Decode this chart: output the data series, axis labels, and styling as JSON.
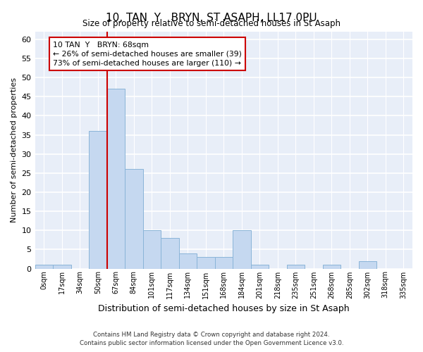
{
  "title": "10, TAN  Y   BRYN, ST ASAPH, LL17 0PU",
  "subtitle": "Size of property relative to semi-detached houses in St Asaph",
  "xlabel": "Distribution of semi-detached houses by size in St Asaph",
  "ylabel": "Number of semi-detached properties",
  "bar_labels": [
    "0sqm",
    "17sqm",
    "34sqm",
    "50sqm",
    "67sqm",
    "84sqm",
    "101sqm",
    "117sqm",
    "134sqm",
    "151sqm",
    "168sqm",
    "184sqm",
    "201sqm",
    "218sqm",
    "235sqm",
    "251sqm",
    "268sqm",
    "285sqm",
    "302sqm",
    "318sqm",
    "335sqm"
  ],
  "bar_values": [
    1,
    1,
    0,
    36,
    47,
    26,
    10,
    8,
    4,
    3,
    3,
    10,
    1,
    0,
    1,
    0,
    1,
    0,
    2,
    0,
    0
  ],
  "bar_color": "#c5d8f0",
  "bar_edgecolor": "#8ab4d8",
  "property_bin_index": 4,
  "annotation_title": "10 TAN  Y   BRYN: 68sqm",
  "annotation_line1": "← 26% of semi-detached houses are smaller (39)",
  "annotation_line2": "73% of semi-detached houses are larger (110) →",
  "vline_color": "#cc0000",
  "annotation_box_edgecolor": "#cc0000",
  "ylim_max": 62,
  "yticks": [
    0,
    5,
    10,
    15,
    20,
    25,
    30,
    35,
    40,
    45,
    50,
    55,
    60
  ],
  "bg_color": "#e8eef8",
  "footer1": "Contains HM Land Registry data © Crown copyright and database right 2024.",
  "footer2": "Contains public sector information licensed under the Open Government Licence v3.0."
}
